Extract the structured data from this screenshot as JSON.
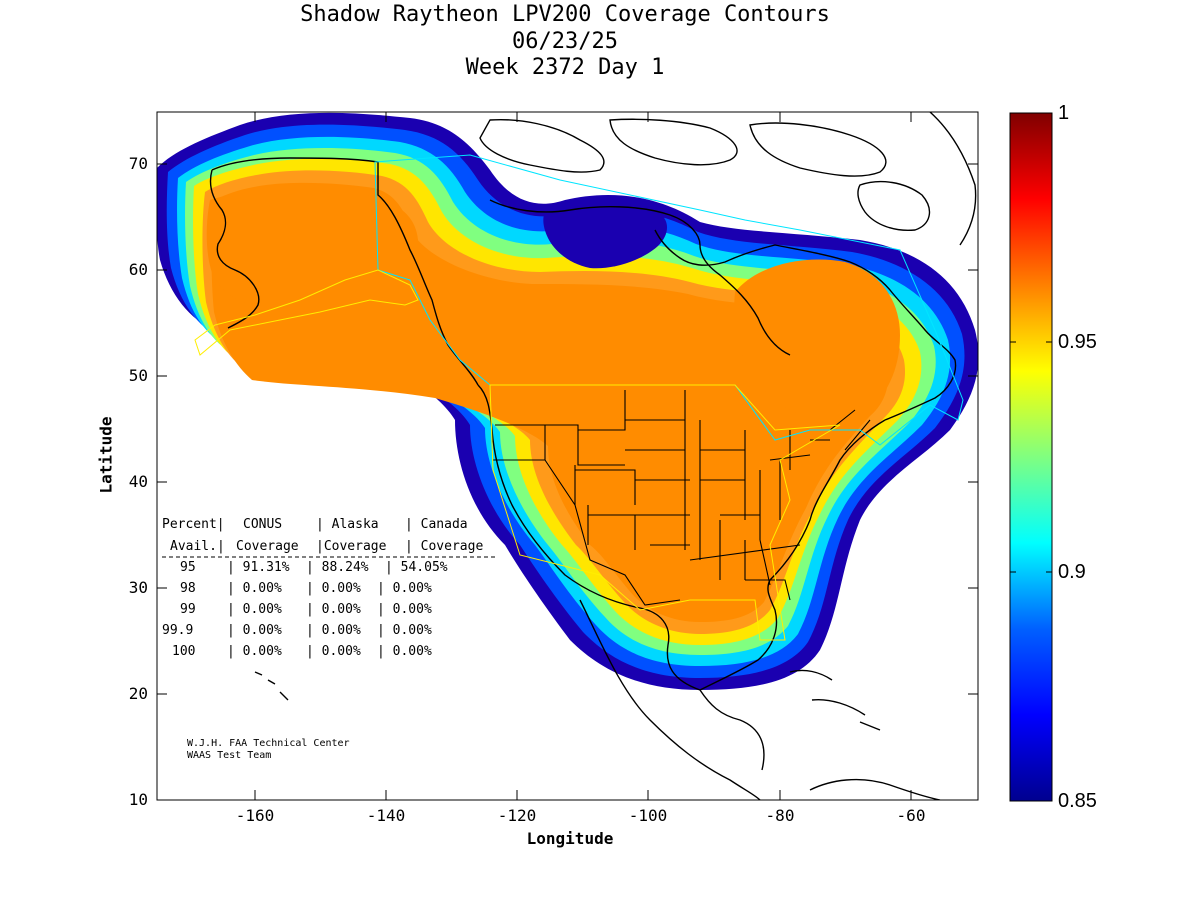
{
  "title": {
    "line1": "Shadow Raytheon LPV200 Coverage Contours",
    "line2": "06/23/25",
    "line3": "Week 2372 Day 1"
  },
  "axes": {
    "xlabel": "Longitude",
    "ylabel": "Latitude",
    "xticks": [
      "-160",
      "-140",
      "-120",
      "-100",
      "-80",
      "-60"
    ],
    "yticks": [
      "70",
      "60",
      "50",
      "40",
      "30",
      "20",
      "10"
    ],
    "xlim": [
      -175,
      -50
    ],
    "ylim": [
      10,
      75
    ]
  },
  "colorbar": {
    "min_label": "0.85",
    "mid1_label": "0.9",
    "mid2_label": "0.95",
    "max_label": "1",
    "range": [
      0.85,
      1.0
    ],
    "colors": [
      "#00008f",
      "#0000ff",
      "#0080ff",
      "#00ffff",
      "#80ff80",
      "#ffff00",
      "#ff8000",
      "#ff0000",
      "#800000"
    ]
  },
  "coverage_table": {
    "header1": [
      "Percent|",
      "CONUS",
      "| Alaska",
      "| Canada"
    ],
    "header2": [
      "Avail.|",
      "Coverage",
      "|Coverage",
      "| Coverage"
    ],
    "rows": [
      [
        "95",
        "| 91.31%",
        "| 88.24%",
        "| 54.05%"
      ],
      [
        "98",
        "| 0.00%",
        "| 0.00%",
        "| 0.00%"
      ],
      [
        "99",
        "| 0.00%",
        "| 0.00%",
        "| 0.00%"
      ],
      [
        "99.9",
        "| 0.00%",
        "| 0.00%",
        "| 0.00%"
      ],
      [
        "100",
        "| 0.00%",
        "| 0.00%",
        "| 0.00%"
      ]
    ]
  },
  "credits": {
    "line1": "W.J.H. FAA Technical Center",
    "line2": "WAAS Test Team"
  },
  "colors": {
    "coverage_core": "#ff8c00",
    "coverage_edge": "#00008f",
    "coastline": "#000000"
  }
}
